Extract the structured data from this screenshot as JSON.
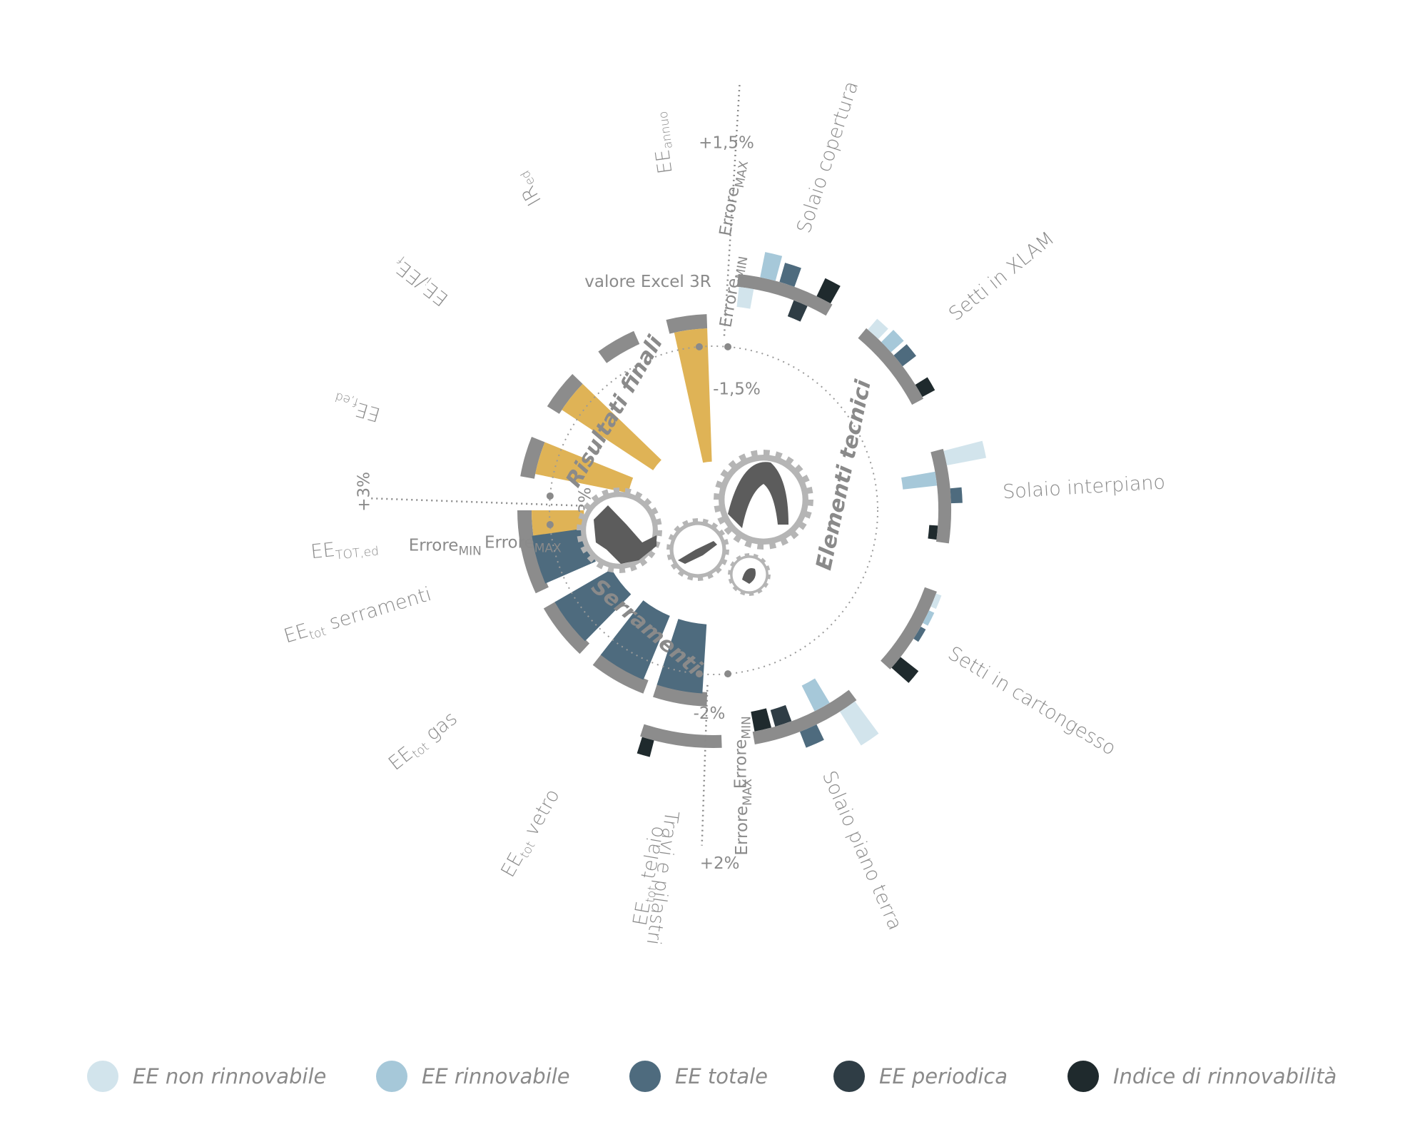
{
  "chart_data": {
    "type": "radial-bar",
    "groups": [
      {
        "name": "Risultati finali"
      },
      {
        "name": "Elementi tecnici"
      },
      {
        "name": "Serramenti"
      }
    ],
    "risultati_finali": {
      "series": "valore",
      "color": "#dfb356",
      "unit_range": "-3% / +3%",
      "items": [
        {
          "label": "EE",
          "sub": "TOT,ed",
          "value": 1.1
        },
        {
          "label": "EE",
          "sub": "f,ed",
          "value": 2.0
        },
        {
          "label": "EE",
          "sub": "i",
          "label2": "/EE",
          "sub2": "f",
          "value": 2.3
        },
        {
          "label": "IR",
          "sub": "ed",
          "value": 0.0
        },
        {
          "label": "EE",
          "sub": "annuo",
          "value": 2.8
        }
      ]
    },
    "elementi_tecnici": {
      "unit_range": "-1,5% / +1,5%",
      "series_names": [
        "EE non rinnovabile",
        "EE rinnovabile",
        "EE totale",
        "EE periodica",
        "Indice di rinnovabilità"
      ],
      "items": [
        {
          "label": "Solaio copertura",
          "values": [
            -0.7,
            0.9,
            0.7,
            -0.6,
            0.7
          ]
        },
        {
          "label": "Setti in XLAM",
          "values": [
            0.5,
            0.6,
            0.6,
            0.0,
            0.5
          ]
        },
        {
          "label": "Solaio interpiano",
          "values": [
            1.4,
            -1.2,
            0.4,
            0.0,
            -0.3
          ]
        },
        {
          "label": "Setti in cartongesso",
          "values": [
            0.2,
            0.2,
            0.2,
            0.0,
            0.8
          ]
        },
        {
          "label": "Solaio piano terra",
          "values": [
            1.4,
            -1.0,
            0.6,
            -0.6,
            -0.7
          ]
        },
        {
          "label": "Travi e pilastri",
          "values": [
            0.0,
            0.0,
            0.0,
            0.0,
            0.6
          ]
        }
      ]
    },
    "serramenti": {
      "series": "EE totale",
      "color": "#4e6b7e",
      "unit_range": "-2% / +2%",
      "items": [
        {
          "label": "EE",
          "sub": "tot",
          "rest": " serramenti",
          "value": 1.5
        },
        {
          "label": "EE",
          "sub": "tot",
          "rest": " gas",
          "value": 1.8
        },
        {
          "label": "EE",
          "sub": "tot",
          "rest": " vetro",
          "value": 1.9
        },
        {
          "label": "EE",
          "sub": "tot",
          "rest": " telaio",
          "value": 1.9
        }
      ]
    },
    "annotations": {
      "valore_excel": "valore Excel 3R",
      "errore": "Errore",
      "max": "MAX",
      "min": "MIN",
      "rf_plus": "+3%",
      "rf_minus": "-3%",
      "et_plus": "+1,5%",
      "et_minus": "-1,5%",
      "se_plus": "+2%",
      "se_minus": "-2%"
    },
    "legend": [
      {
        "label": "EE non rinnovabile",
        "color": "#d2e4ec"
      },
      {
        "label": "EE rinnovabile",
        "color": "#a6c8d9"
      },
      {
        "label": "EE totale",
        "color": "#4e6b7e"
      },
      {
        "label": "EE periodica",
        "color": "#2f3d45"
      },
      {
        "label": "Indice di rinnovabilità",
        "color": "#1f2a2d"
      }
    ],
    "colors": {
      "base_ring": "#8c8c8c",
      "series": [
        "#d2e4ec",
        "#a6c8d9",
        "#4e6b7e",
        "#2f3d45",
        "#1f2a2d"
      ],
      "gear": "#b5b5b5",
      "gear_icon": "#5c5c5c"
    }
  }
}
